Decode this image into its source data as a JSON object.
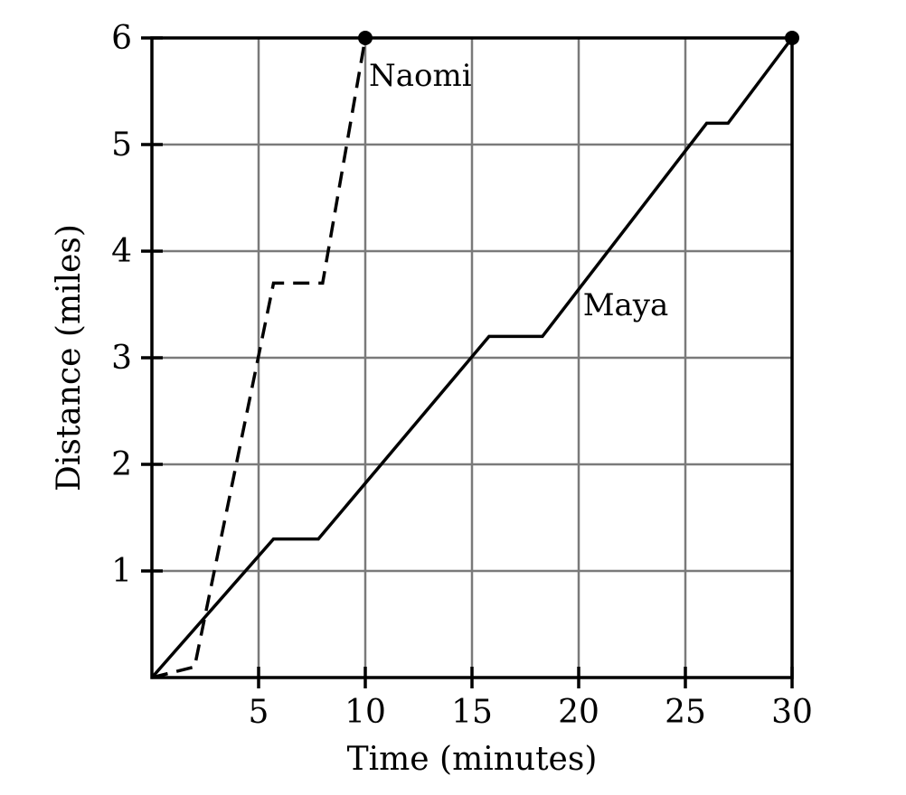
{
  "chart_data": {
    "type": "line",
    "xlabel": "Time (minutes)",
    "ylabel": "Distance (miles)",
    "xlim": [
      0,
      30
    ],
    "ylim": [
      0,
      6
    ],
    "x_ticks": [
      5,
      10,
      15,
      20,
      25,
      30
    ],
    "y_ticks": [
      1,
      2,
      3,
      4,
      5,
      6
    ],
    "grid": true,
    "series": [
      {
        "name": "Naomi",
        "style": "dashed",
        "color": "#000000",
        "end_marker": true,
        "points": [
          [
            0,
            0
          ],
          [
            2,
            0.1
          ],
          [
            5.7,
            3.7
          ],
          [
            8,
            3.7
          ],
          [
            10,
            6
          ]
        ]
      },
      {
        "name": "Maya",
        "style": "solid",
        "color": "#000000",
        "end_marker": true,
        "points": [
          [
            0,
            0
          ],
          [
            5.7,
            1.3
          ],
          [
            7.8,
            1.3
          ],
          [
            15.8,
            3.2
          ],
          [
            18.3,
            3.2
          ],
          [
            26,
            5.2
          ],
          [
            27,
            5.2
          ],
          [
            30,
            6
          ]
        ]
      }
    ]
  }
}
